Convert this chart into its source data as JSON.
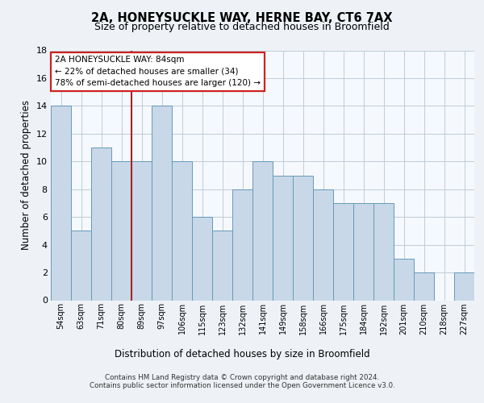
{
  "title1": "2A, HONEYSUCKLE WAY, HERNE BAY, CT6 7AX",
  "title2": "Size of property relative to detached houses in Broomfield",
  "xlabel": "Distribution of detached houses by size in Broomfield",
  "ylabel": "Number of detached properties",
  "categories": [
    "54sqm",
    "63sqm",
    "71sqm",
    "80sqm",
    "89sqm",
    "97sqm",
    "106sqm",
    "115sqm",
    "123sqm",
    "132sqm",
    "141sqm",
    "149sqm",
    "158sqm",
    "166sqm",
    "175sqm",
    "184sqm",
    "192sqm",
    "201sqm",
    "210sqm",
    "218sqm",
    "227sqm"
  ],
  "values": [
    14,
    5,
    11,
    10,
    10,
    14,
    10,
    6,
    5,
    8,
    10,
    9,
    9,
    8,
    7,
    7,
    7,
    3,
    2,
    0,
    2
  ],
  "bar_color": "#c8d8e8",
  "bar_edge_color": "#6699bb",
  "vline_x": 3.5,
  "vline_color": "#aa2222",
  "ylim": [
    0,
    18
  ],
  "yticks": [
    0,
    2,
    4,
    6,
    8,
    10,
    12,
    14,
    16,
    18
  ],
  "annotation_line1": "2A HONEYSUCKLE WAY: 84sqm",
  "annotation_line2": "← 22% of detached houses are smaller (34)",
  "annotation_line3": "78% of semi-detached houses are larger (120) →",
  "footer1": "Contains HM Land Registry data © Crown copyright and database right 2024.",
  "footer2": "Contains public sector information licensed under the Open Government Licence v3.0.",
  "bg_color": "#eef2f7",
  "plot_bg_color": "#f5f8fc",
  "grid_color": "#c0ccd8"
}
